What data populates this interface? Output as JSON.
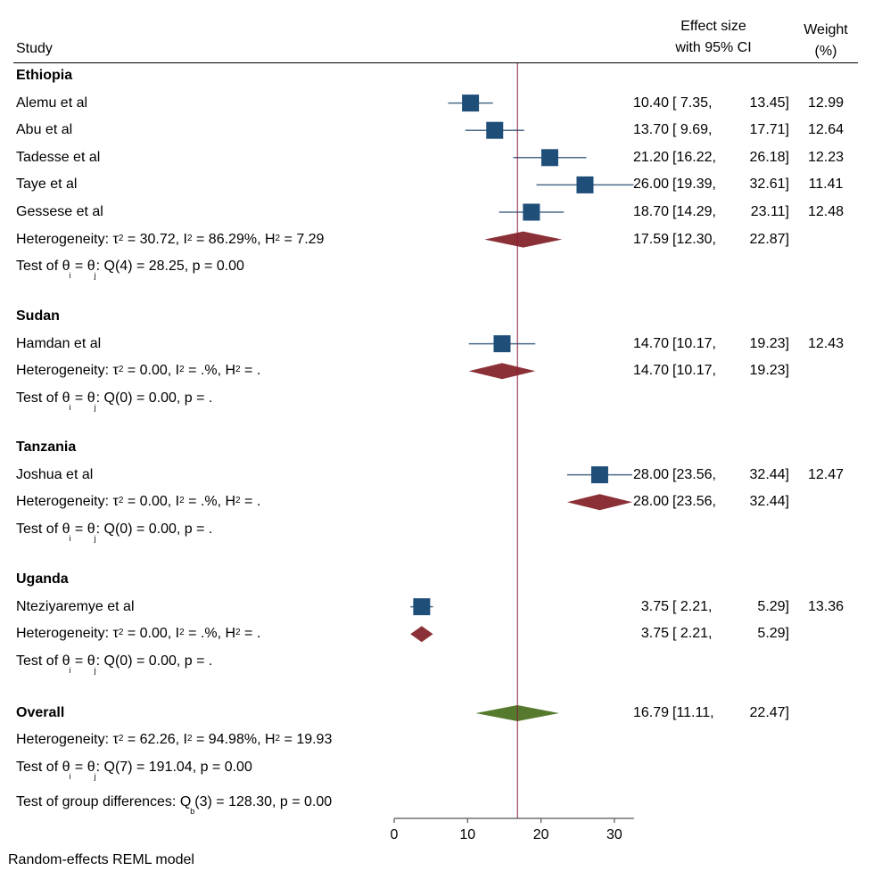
{
  "header": {
    "study_label": "Study",
    "effect_label_line1": "Effect size",
    "effect_label_line2": "with 95% CI",
    "weight_label_line1": "Weight",
    "weight_label_line2": "(%)"
  },
  "footnote": "Random-effects REML model",
  "colors": {
    "study_marker": "#1f4e79",
    "ci_line": "#4a6a8a",
    "subgroup_diamond": "#8b3036",
    "overall_diamond": "#557a2e",
    "reference_line": "#8b1a3a",
    "axis": "#555555"
  },
  "chart_data": {
    "type": "forest",
    "title": "",
    "xlabel": "",
    "xlim": [
      0,
      32.61
    ],
    "xticks": [
      0,
      10,
      20,
      30
    ],
    "xtick_labels": [
      "0",
      "10",
      "20",
      "30"
    ],
    "reference_line": 16.79,
    "groups": [
      {
        "name": "Ethiopia",
        "studies": [
          {
            "name": "Alemu et al",
            "es": 10.4,
            "lo": 7.35,
            "hi": 13.45,
            "es_text": "10.40",
            "lo_text": "7.35",
            "hi_text": "13.45",
            "weight": "12.99"
          },
          {
            "name": "Abu et al",
            "es": 13.7,
            "lo": 9.69,
            "hi": 17.71,
            "es_text": "13.70",
            "lo_text": "9.69",
            "hi_text": "17.71",
            "weight": "12.64"
          },
          {
            "name": "Tadesse et al",
            "es": 21.2,
            "lo": 16.22,
            "hi": 26.18,
            "es_text": "21.20",
            "lo_text": "16.22",
            "hi_text": "26.18",
            "weight": "12.23"
          },
          {
            "name": "Taye et al",
            "es": 26.0,
            "lo": 19.39,
            "hi": 32.61,
            "es_text": "26.00",
            "lo_text": "19.39",
            "hi_text": "32.61",
            "weight": "11.41"
          },
          {
            "name": "Gessese et al",
            "es": 18.7,
            "lo": 14.29,
            "hi": 23.11,
            "es_text": "18.70",
            "lo_text": "14.29",
            "hi_text": "23.11",
            "weight": "12.48"
          }
        ],
        "pooled": {
          "es": 17.59,
          "lo": 12.3,
          "hi": 22.87,
          "es_text": "17.59",
          "lo_text": "12.30",
          "hi_text": "22.87"
        },
        "heterogeneity": {
          "tau2": "30.72",
          "i2": "86.29%",
          "h2": "7.29"
        },
        "test": {
          "df": "4",
          "q": "28.25",
          "p": "0.00"
        }
      },
      {
        "name": "Sudan",
        "studies": [
          {
            "name": "Hamdan et al",
            "es": 14.7,
            "lo": 10.17,
            "hi": 19.23,
            "es_text": "14.70",
            "lo_text": "10.17",
            "hi_text": "19.23",
            "weight": "12.43"
          }
        ],
        "pooled": {
          "es": 14.7,
          "lo": 10.17,
          "hi": 19.23,
          "es_text": "14.70",
          "lo_text": "10.17",
          "hi_text": "19.23"
        },
        "heterogeneity": {
          "tau2": "0.00",
          "i2": ".%",
          "h2": "."
        },
        "test": {
          "df": "0",
          "q": "0.00",
          "p": "."
        }
      },
      {
        "name": "Tanzania",
        "studies": [
          {
            "name": "Joshua et al",
            "es": 28.0,
            "lo": 23.56,
            "hi": 32.44,
            "es_text": "28.00",
            "lo_text": "23.56",
            "hi_text": "32.44",
            "weight": "12.47"
          }
        ],
        "pooled": {
          "es": 28.0,
          "lo": 23.56,
          "hi": 32.44,
          "es_text": "28.00",
          "lo_text": "23.56",
          "hi_text": "32.44"
        },
        "heterogeneity": {
          "tau2": "0.00",
          "i2": ".%",
          "h2": "."
        },
        "test": {
          "df": "0",
          "q": "0.00",
          "p": "."
        }
      },
      {
        "name": "Uganda",
        "studies": [
          {
            "name": "Nteziyaremye et al",
            "es": 3.75,
            "lo": 2.21,
            "hi": 5.29,
            "es_text": "3.75",
            "lo_text": "2.21",
            "hi_text": "5.29",
            "weight": "13.36"
          }
        ],
        "pooled": {
          "es": 3.75,
          "lo": 2.21,
          "hi": 5.29,
          "es_text": "3.75",
          "lo_text": "2.21",
          "hi_text": "5.29"
        },
        "heterogeneity": {
          "tau2": "0.00",
          "i2": ".%",
          "h2": "."
        },
        "test": {
          "df": "0",
          "q": "0.00",
          "p": "."
        }
      }
    ],
    "overall": {
      "name": "Overall",
      "es": 16.79,
      "lo": 11.11,
      "hi": 22.47,
      "es_text": "16.79",
      "lo_text": "11.11",
      "hi_text": "22.47",
      "heterogeneity": {
        "tau2": "62.26",
        "i2": "94.98%",
        "h2": "19.93"
      },
      "test": {
        "df": "7",
        "q": "191.04",
        "p": "0.00"
      },
      "group_test": {
        "df": "3",
        "q": "128.30",
        "p": "0.00"
      }
    }
  }
}
